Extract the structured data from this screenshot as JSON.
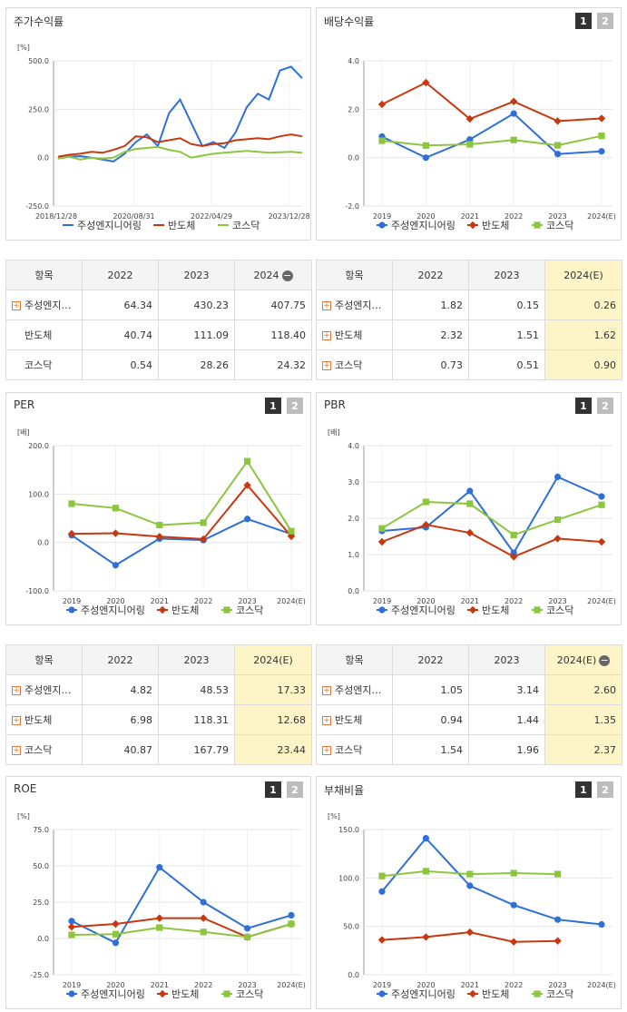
{
  "colors": {
    "s1": "#2e6fd8",
    "s2": "#c8380f",
    "s3": "#8cc63f"
  },
  "chart_data": [
    {
      "id": "stock",
      "title": "주가수익률",
      "type": "line",
      "unit": "[%]",
      "ylim": [
        -250,
        500
      ],
      "yticks": [
        "500.0",
        "250.0",
        "0.0",
        "-250.0"
      ],
      "xticks": [
        "2018/12/28",
        "2020/08/31",
        "2022/04/29",
        "2023/12/28"
      ],
      "legend_markers": false,
      "series": [
        {
          "name": "주성엔지니어링",
          "values": [
            -5,
            5,
            8,
            0,
            -10,
            -20,
            20,
            80,
            120,
            60,
            230,
            300,
            180,
            60,
            80,
            50,
            130,
            260,
            330,
            300,
            450,
            470,
            410
          ]
        },
        {
          "name": "반도체",
          "values": [
            5,
            15,
            20,
            30,
            25,
            40,
            60,
            110,
            105,
            80,
            90,
            100,
            70,
            60,
            70,
            75,
            90,
            95,
            100,
            95,
            110,
            120,
            110
          ]
        },
        {
          "name": "코스닥",
          "values": [
            -5,
            5,
            -10,
            0,
            -5,
            0,
            30,
            45,
            50,
            55,
            40,
            30,
            0,
            10,
            20,
            25,
            30,
            35,
            30,
            25,
            28,
            30,
            25
          ]
        }
      ]
    },
    {
      "id": "dividend",
      "title": "배당수익률",
      "type": "line",
      "unit": "",
      "ylim": [
        -2,
        4
      ],
      "yticks": [
        "4.0",
        "2.0",
        "0.0",
        "-2.0"
      ],
      "categories": [
        "2019",
        "2020",
        "2021",
        "2022",
        "2023",
        "2024(E)"
      ],
      "legend_markers": true,
      "series": [
        {
          "name": "주성엔지니어링",
          "values": [
            0.87,
            0.0,
            0.75,
            1.82,
            0.15,
            0.26
          ]
        },
        {
          "name": "반도체",
          "values": [
            2.2,
            3.1,
            1.6,
            2.32,
            1.51,
            1.62
          ]
        },
        {
          "name": "코스닥",
          "values": [
            0.7,
            0.5,
            0.55,
            0.73,
            0.51,
            0.9
          ]
        }
      ]
    },
    {
      "id": "per",
      "title": "PER",
      "type": "line",
      "unit": "[배]",
      "ylim": [
        -100,
        200
      ],
      "yticks": [
        "200.0",
        "100.0",
        "0.0",
        "-100.0"
      ],
      "categories": [
        "2019",
        "2020",
        "2021",
        "2022",
        "2023",
        "2024(E)"
      ],
      "legend_markers": true,
      "series": [
        {
          "name": "주성엔지니어링",
          "values": [
            15,
            -47,
            8,
            4.82,
            48.53,
            17.33
          ]
        },
        {
          "name": "반도체",
          "values": [
            18,
            19,
            12,
            6.98,
            118.31,
            12.68
          ]
        },
        {
          "name": "코스닥",
          "values": [
            80,
            71,
            36,
            40.87,
            167.79,
            23.44
          ]
        }
      ]
    },
    {
      "id": "pbr",
      "title": "PBR",
      "type": "line",
      "unit": "[배]",
      "ylim": [
        0,
        4
      ],
      "yticks": [
        "4.0",
        "3.0",
        "2.0",
        "1.0",
        "0.0"
      ],
      "categories": [
        "2019",
        "2020",
        "2021",
        "2022",
        "2023",
        "2024(E)"
      ],
      "legend_markers": true,
      "series": [
        {
          "name": "주성엔지니어링",
          "values": [
            1.65,
            1.75,
            2.75,
            1.05,
            3.14,
            2.6
          ]
        },
        {
          "name": "반도체",
          "values": [
            1.35,
            1.82,
            1.6,
            0.94,
            1.44,
            1.35
          ]
        },
        {
          "name": "코스닥",
          "values": [
            1.72,
            2.45,
            2.4,
            1.54,
            1.96,
            2.37
          ]
        }
      ]
    },
    {
      "id": "roe",
      "title": "ROE",
      "type": "line",
      "unit": "[%]",
      "ylim": [
        -25,
        75
      ],
      "yticks": [
        "75.0",
        "50.0",
        "25.0",
        "0.0",
        "-25.0"
      ],
      "categories": [
        "2019",
        "2020",
        "2021",
        "2022",
        "2023",
        "2024(E)"
      ],
      "legend_markers": true,
      "series": [
        {
          "name": "주성엔지니어링",
          "values": [
            12,
            -3,
            49,
            25,
            7,
            16
          ]
        },
        {
          "name": "반도체",
          "values": [
            8,
            10,
            14,
            14,
            1,
            10
          ]
        },
        {
          "name": "코스닥",
          "values": [
            2.5,
            3,
            7.5,
            4.5,
            1,
            10
          ]
        }
      ]
    },
    {
      "id": "debt",
      "title": "부채비율",
      "type": "line",
      "unit": "[%]",
      "ylim": [
        0,
        150
      ],
      "yticks": [
        "150.0",
        "100.0",
        "50.0",
        "0.0"
      ],
      "categories": [
        "2019",
        "2020",
        "2021",
        "2022",
        "2023",
        "2024(E)"
      ],
      "legend_markers": true,
      "series": [
        {
          "name": "주성엔지니어링",
          "values": [
            86,
            141,
            92,
            72,
            57,
            52
          ]
        },
        {
          "name": "반도체",
          "values": [
            36,
            39,
            44,
            34,
            35,
            null
          ]
        },
        {
          "name": "코스닥",
          "values": [
            102,
            107,
            104,
            105,
            104,
            null
          ]
        }
      ]
    }
  ],
  "panel_buttons": [
    "1",
    "2"
  ],
  "tables": [
    {
      "id": "t_stock",
      "header": [
        "항목",
        "2022",
        "2023",
        "2024"
      ],
      "last_header_icon": "−",
      "highlight_last": false,
      "rows": [
        {
          "name": "주성엔지…",
          "plus": true,
          "values": [
            "64.34",
            "430.23",
            "407.75"
          ]
        },
        {
          "name": "반도체",
          "plus": false,
          "values": [
            "40.74",
            "111.09",
            "118.40"
          ]
        },
        {
          "name": "코스닥",
          "plus": false,
          "values": [
            "0.54",
            "28.26",
            "24.32"
          ]
        }
      ]
    },
    {
      "id": "t_dividend",
      "header": [
        "항목",
        "2022",
        "2023",
        "2024(E)"
      ],
      "last_header_icon": "",
      "highlight_last": true,
      "rows": [
        {
          "name": "주성엔지…",
          "plus": true,
          "values": [
            "1.82",
            "0.15",
            "0.26"
          ]
        },
        {
          "name": "반도체",
          "plus": true,
          "values": [
            "2.32",
            "1.51",
            "1.62"
          ]
        },
        {
          "name": "코스닥",
          "plus": true,
          "values": [
            "0.73",
            "0.51",
            "0.90"
          ]
        }
      ]
    },
    {
      "id": "t_per",
      "header": [
        "항목",
        "2022",
        "2023",
        "2024(E)"
      ],
      "last_header_icon": "",
      "highlight_last": true,
      "rows": [
        {
          "name": "주성엔지…",
          "plus": true,
          "values": [
            "4.82",
            "48.53",
            "17.33"
          ]
        },
        {
          "name": "반도체",
          "plus": true,
          "values": [
            "6.98",
            "118.31",
            "12.68"
          ]
        },
        {
          "name": "코스닥",
          "plus": true,
          "values": [
            "40.87",
            "167.79",
            "23.44"
          ]
        }
      ]
    },
    {
      "id": "t_pbr",
      "header": [
        "항목",
        "2022",
        "2023",
        "2024(E)"
      ],
      "last_header_icon": "−",
      "highlight_last": true,
      "rows": [
        {
          "name": "주성엔지…",
          "plus": true,
          "values": [
            "1.05",
            "3.14",
            "2.60"
          ]
        },
        {
          "name": "반도체",
          "plus": true,
          "values": [
            "0.94",
            "1.44",
            "1.35"
          ]
        },
        {
          "name": "코스닥",
          "plus": true,
          "values": [
            "1.54",
            "1.96",
            "2.37"
          ]
        }
      ]
    }
  ]
}
